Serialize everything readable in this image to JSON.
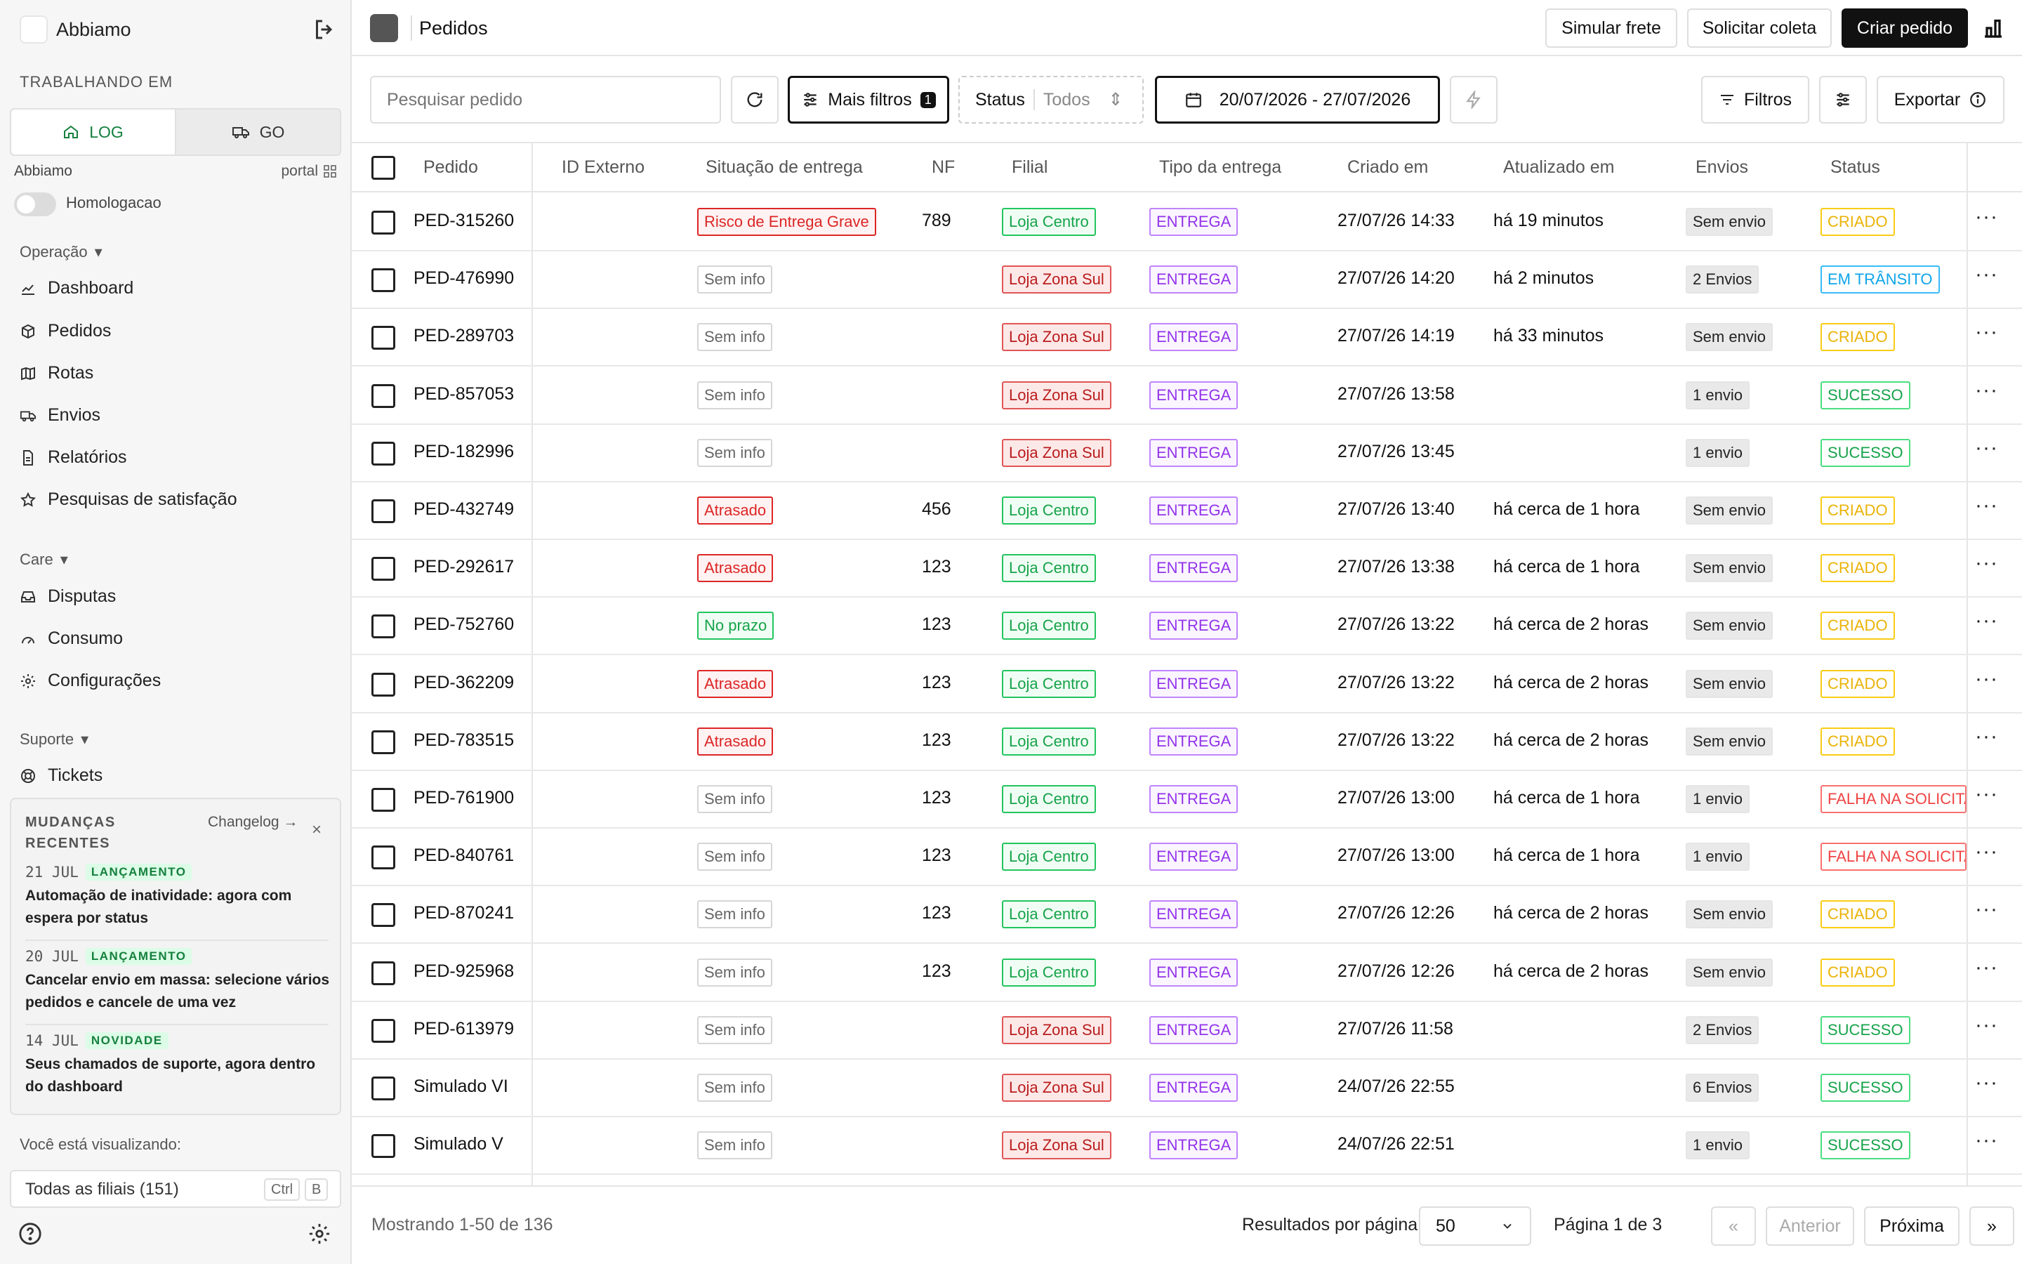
{
  "sidebar": {
    "workspace": "Abbiamo",
    "working_in_label": "TRABALHANDO EM",
    "segments": [
      "LOG",
      "GO"
    ],
    "org": "Abbiamo",
    "portal": "portal",
    "toggle_label": "Homologacao",
    "groups": {
      "operacao": "Operação",
      "care": "Care",
      "suporte": "Suporte"
    },
    "nav_operacao": [
      "Dashboard",
      "Pedidos",
      "Rotas",
      "Envios",
      "Relatórios",
      "Pesquisas de satisfação"
    ],
    "nav_care": [
      "Disputas",
      "Consumo",
      "Configurações"
    ],
    "nav_suporte": [
      "Tickets"
    ],
    "changelog": {
      "title": "MUDANÇAS RECENTES",
      "link": "Changelog →",
      "close": "×",
      "items": [
        {
          "date": "21 JUL",
          "tag": "LANÇAMENTO",
          "text": "Automação de inatividade: agora com espera por status"
        },
        {
          "date": "20 JUL",
          "tag": "LANÇAMENTO",
          "text": "Cancelar envio em massa: selecione vários pedidos e cancele de uma vez"
        },
        {
          "date": "14 JUL",
          "tag": "NOVIDADE",
          "text": "Seus chamados de suporte, agora dentro do dashboard"
        }
      ]
    },
    "viewing_label": "Você está visualizando:",
    "branch_selector": "Todas as filiais (151)",
    "shortcut": [
      "Ctrl",
      "B"
    ]
  },
  "header": {
    "title": "Pedidos",
    "buttons": {
      "simulate": "Simular frete",
      "pickup": "Solicitar coleta",
      "create": "Criar pedido"
    }
  },
  "toolbar": {
    "search_placeholder": "Pesquisar pedido",
    "more_filters": "Mais filtros",
    "more_filters_count": "1",
    "status_label": "Status",
    "status_value": "Todos",
    "date_range": "20/07/2026 - 27/07/2026",
    "filters": "Filtros",
    "export": "Exportar"
  },
  "table": {
    "columns": [
      "Pedido",
      "ID Externo",
      "Situação de entrega",
      "NF",
      "Filial",
      "Tipo da entrega",
      "Criado em",
      "Atualizado em",
      "Envios",
      "Status"
    ],
    "rows": [
      {
        "pedido": "PED-315260",
        "situacao": "Risco de Entrega Grave",
        "sit": "red",
        "nf": "789",
        "filial": "Loja Centro",
        "tipo": "ENTREGA",
        "criado": "27/07/26 14:33",
        "atualizado": "há 19 minutos",
        "envios": "Sem envio",
        "status": "CRIADO",
        "st": "yellow"
      },
      {
        "pedido": "PED-476990",
        "situacao": "Sem info",
        "sit": "gray",
        "nf": "",
        "filial": "Loja Zona Sul",
        "tipo": "ENTREGA",
        "criado": "27/07/26 14:20",
        "atualizado": "há 2 minutos",
        "envios": "2 Envios",
        "status": "EM TRÂNSITO",
        "st": "blue"
      },
      {
        "pedido": "PED-289703",
        "situacao": "Sem info",
        "sit": "gray",
        "nf": "",
        "filial": "Loja Zona Sul",
        "tipo": "ENTREGA",
        "criado": "27/07/26 14:19",
        "atualizado": "há 33 minutos",
        "envios": "Sem envio",
        "status": "CRIADO",
        "st": "yellow"
      },
      {
        "pedido": "PED-857053",
        "situacao": "Sem info",
        "sit": "gray",
        "nf": "",
        "filial": "Loja Zona Sul",
        "tipo": "ENTREGA",
        "criado": "27/07/26 13:58",
        "atualizado": "",
        "envios": "1 envio",
        "status": "SUCESSO",
        "st": "succ"
      },
      {
        "pedido": "PED-182996",
        "situacao": "Sem info",
        "sit": "gray",
        "nf": "",
        "filial": "Loja Zona Sul",
        "tipo": "ENTREGA",
        "criado": "27/07/26 13:45",
        "atualizado": "",
        "envios": "1 envio",
        "status": "SUCESSO",
        "st": "succ"
      },
      {
        "pedido": "PED-432749",
        "situacao": "Atrasado",
        "sit": "red",
        "nf": "456",
        "filial": "Loja Centro",
        "tipo": "ENTREGA",
        "criado": "27/07/26 13:40",
        "atualizado": "há cerca de 1 hora",
        "envios": "Sem envio",
        "status": "CRIADO",
        "st": "yellow"
      },
      {
        "pedido": "PED-292617",
        "situacao": "Atrasado",
        "sit": "red",
        "nf": "123",
        "filial": "Loja Centro",
        "tipo": "ENTREGA",
        "criado": "27/07/26 13:38",
        "atualizado": "há cerca de 1 hora",
        "envios": "Sem envio",
        "status": "CRIADO",
        "st": "yellow"
      },
      {
        "pedido": "PED-752760",
        "situacao": "No prazo",
        "sit": "green",
        "nf": "123",
        "filial": "Loja Centro",
        "tipo": "ENTREGA",
        "criado": "27/07/26 13:22",
        "atualizado": "há cerca de 2 horas",
        "envios": "Sem envio",
        "status": "CRIADO",
        "st": "yellow"
      },
      {
        "pedido": "PED-362209",
        "situacao": "Atrasado",
        "sit": "red",
        "nf": "123",
        "filial": "Loja Centro",
        "tipo": "ENTREGA",
        "criado": "27/07/26 13:22",
        "atualizado": "há cerca de 2 horas",
        "envios": "Sem envio",
        "status": "CRIADO",
        "st": "yellow"
      },
      {
        "pedido": "PED-783515",
        "situacao": "Atrasado",
        "sit": "red",
        "nf": "123",
        "filial": "Loja Centro",
        "tipo": "ENTREGA",
        "criado": "27/07/26 13:22",
        "atualizado": "há cerca de 2 horas",
        "envios": "Sem envio",
        "status": "CRIADO",
        "st": "yellow"
      },
      {
        "pedido": "PED-761900",
        "situacao": "Sem info",
        "sit": "gray",
        "nf": "123",
        "filial": "Loja Centro",
        "tipo": "ENTREGA",
        "criado": "27/07/26 13:00",
        "atualizado": "há cerca de 1 hora",
        "envios": "1 envio",
        "status": "FALHA NA SOLICITAÇÃO",
        "st": "fail"
      },
      {
        "pedido": "PED-840761",
        "situacao": "Sem info",
        "sit": "gray",
        "nf": "123",
        "filial": "Loja Centro",
        "tipo": "ENTREGA",
        "criado": "27/07/26 13:00",
        "atualizado": "há cerca de 1 hora",
        "envios": "1 envio",
        "status": "FALHA NA SOLICITAÇÃO",
        "st": "fail"
      },
      {
        "pedido": "PED-870241",
        "situacao": "Sem info",
        "sit": "gray",
        "nf": "123",
        "filial": "Loja Centro",
        "tipo": "ENTREGA",
        "criado": "27/07/26 12:26",
        "atualizado": "há cerca de 2 horas",
        "envios": "Sem envio",
        "status": "CRIADO",
        "st": "yellow"
      },
      {
        "pedido": "PED-925968",
        "situacao": "Sem info",
        "sit": "gray",
        "nf": "123",
        "filial": "Loja Centro",
        "tipo": "ENTREGA",
        "criado": "27/07/26 12:26",
        "atualizado": "há cerca de 2 horas",
        "envios": "Sem envio",
        "status": "CRIADO",
        "st": "yellow"
      },
      {
        "pedido": "PED-613979",
        "situacao": "Sem info",
        "sit": "gray",
        "nf": "",
        "filial": "Loja Zona Sul",
        "tipo": "ENTREGA",
        "criado": "27/07/26 11:58",
        "atualizado": "",
        "envios": "2 Envios",
        "status": "SUCESSO",
        "st": "succ"
      },
      {
        "pedido": "Simulado VI",
        "situacao": "Sem info",
        "sit": "gray",
        "nf": "",
        "filial": "Loja Zona Sul",
        "tipo": "ENTREGA",
        "criado": "24/07/26 22:55",
        "atualizado": "",
        "envios": "6 Envios",
        "status": "SUCESSO",
        "st": "succ"
      },
      {
        "pedido": "Simulado V",
        "situacao": "Sem info",
        "sit": "gray",
        "nf": "",
        "filial": "Loja Zona Sul",
        "tipo": "ENTREGA",
        "criado": "24/07/26 22:51",
        "atualizado": "",
        "envios": "1 envio",
        "status": "SUCESSO",
        "st": "succ"
      }
    ]
  },
  "footer": {
    "showing": "Mostrando 1-50 de 136",
    "per_page_label": "Resultados por página:",
    "per_page_value": "50",
    "page": "Página 1 de 3",
    "first": "«",
    "prev": "Anterior",
    "next": "Próxima",
    "last": "»"
  }
}
